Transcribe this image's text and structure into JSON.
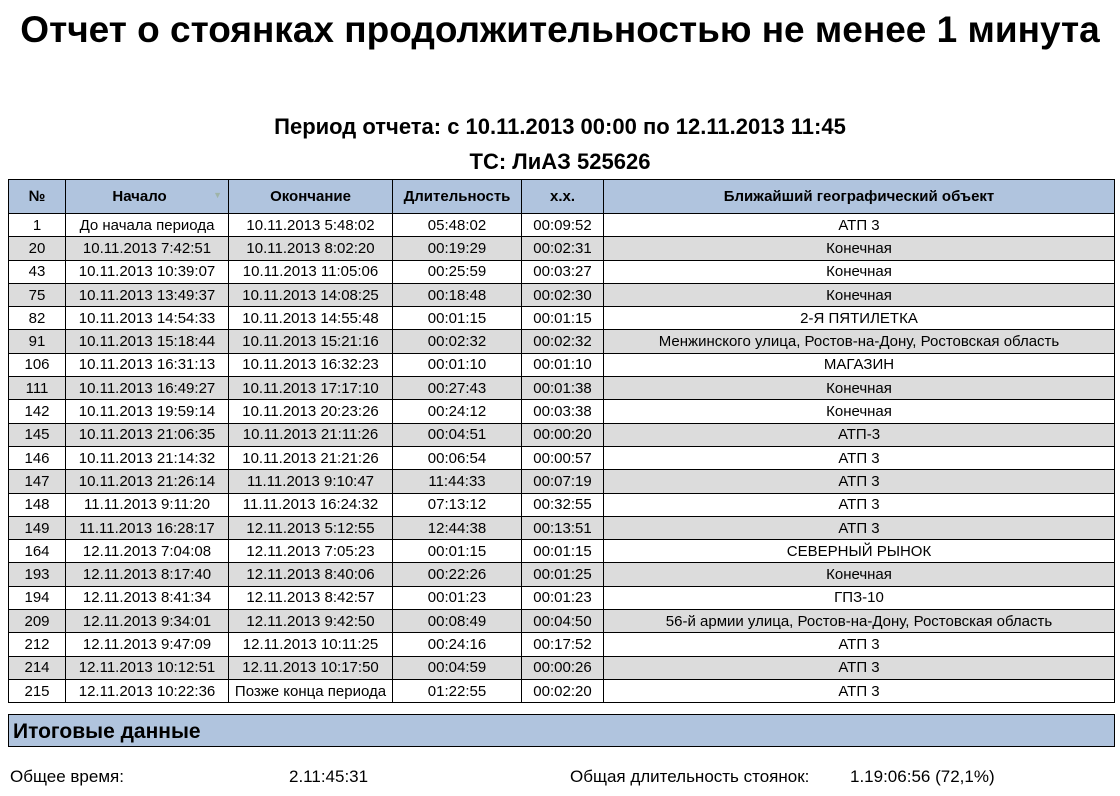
{
  "title": "Отчет о стоянках продолжительностью не менее 1 минута",
  "period": "Период отчета: с 10.11.2013 00:00 по 12.11.2013 11:45",
  "vehicle": "ТС: ЛиАЗ 525626",
  "table": {
    "headers": [
      "№",
      "Начало",
      "Окончание",
      "Длительность",
      "х.х.",
      "Ближайший географический объект"
    ],
    "rows": [
      [
        "1",
        "До начала периода",
        "10.11.2013 5:48:02",
        "05:48:02",
        "00:09:52",
        "АТП 3"
      ],
      [
        "20",
        "10.11.2013 7:42:51",
        "10.11.2013 8:02:20",
        "00:19:29",
        "00:02:31",
        "Конечная"
      ],
      [
        "43",
        "10.11.2013 10:39:07",
        "10.11.2013 11:05:06",
        "00:25:59",
        "00:03:27",
        "Конечная"
      ],
      [
        "75",
        "10.11.2013 13:49:37",
        "10.11.2013 14:08:25",
        "00:18:48",
        "00:02:30",
        "Конечная"
      ],
      [
        "82",
        "10.11.2013 14:54:33",
        "10.11.2013 14:55:48",
        "00:01:15",
        "00:01:15",
        "2-Я ПЯТИЛЕТКА"
      ],
      [
        "91",
        "10.11.2013 15:18:44",
        "10.11.2013 15:21:16",
        "00:02:32",
        "00:02:32",
        "Менжинского улица, Ростов-на-Дону, Ростовская область"
      ],
      [
        "106",
        "10.11.2013 16:31:13",
        "10.11.2013 16:32:23",
        "00:01:10",
        "00:01:10",
        "МАГАЗИН"
      ],
      [
        "111",
        "10.11.2013 16:49:27",
        "10.11.2013 17:17:10",
        "00:27:43",
        "00:01:38",
        "Конечная"
      ],
      [
        "142",
        "10.11.2013 19:59:14",
        "10.11.2013 20:23:26",
        "00:24:12",
        "00:03:38",
        "Конечная"
      ],
      [
        "145",
        "10.11.2013 21:06:35",
        "10.11.2013 21:11:26",
        "00:04:51",
        "00:00:20",
        "АТП-3"
      ],
      [
        "146",
        "10.11.2013 21:14:32",
        "10.11.2013 21:21:26",
        "00:06:54",
        "00:00:57",
        "АТП 3"
      ],
      [
        "147",
        "10.11.2013 21:26:14",
        "11.11.2013 9:10:47",
        "11:44:33",
        "00:07:19",
        "АТП 3"
      ],
      [
        "148",
        "11.11.2013 9:11:20",
        "11.11.2013 16:24:32",
        "07:13:12",
        "00:32:55",
        "АТП 3"
      ],
      [
        "149",
        "11.11.2013 16:28:17",
        "12.11.2013 5:12:55",
        "12:44:38",
        "00:13:51",
        "АТП 3"
      ],
      [
        "164",
        "12.11.2013 7:04:08",
        "12.11.2013 7:05:23",
        "00:01:15",
        "00:01:15",
        "СЕВЕРНЫЙ РЫНОК"
      ],
      [
        "193",
        "12.11.2013 8:17:40",
        "12.11.2013 8:40:06",
        "00:22:26",
        "00:01:25",
        "Конечная"
      ],
      [
        "194",
        "12.11.2013 8:41:34",
        "12.11.2013 8:42:57",
        "00:01:23",
        "00:01:23",
        "ГПЗ-10"
      ],
      [
        "209",
        "12.11.2013 9:34:01",
        "12.11.2013 9:42:50",
        "00:08:49",
        "00:04:50",
        "56-й армии улица, Ростов-на-Дону, Ростовская область"
      ],
      [
        "212",
        "12.11.2013 9:47:09",
        "12.11.2013 10:11:25",
        "00:24:16",
        "00:17:52",
        "АТП 3"
      ],
      [
        "214",
        "12.11.2013 10:12:51",
        "12.11.2013 10:17:50",
        "00:04:59",
        "00:00:26",
        "АТП 3"
      ],
      [
        "215",
        "12.11.2013 10:22:36",
        "Позже конца периода",
        "01:22:55",
        "00:02:20",
        "АТП 3"
      ]
    ]
  },
  "summary": {
    "heading": "Итоговые данные",
    "total_time_label": "Общее время:",
    "total_time_value": "2.11:45:31",
    "parking_label": "Общая длительность стоянок:",
    "parking_value": "1.19:06:56 (72,1%)"
  }
}
